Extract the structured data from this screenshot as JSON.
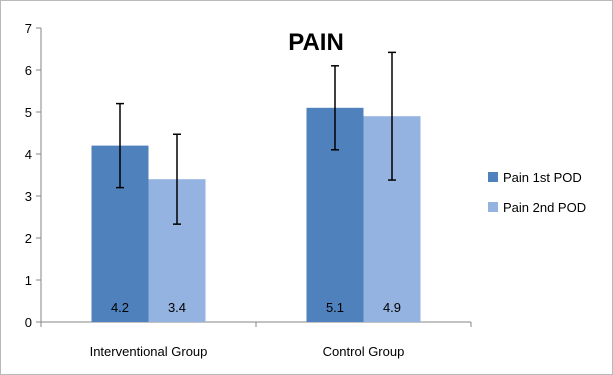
{
  "chart_data": {
    "type": "bar",
    "title": "PAIN",
    "xlabel": "",
    "ylabel": "",
    "ylim": [
      0,
      7
    ],
    "yticks": [
      0,
      1,
      2,
      3,
      4,
      5,
      6,
      7
    ],
    "grid": false,
    "legend_position": "right",
    "categories": [
      "Interventional Group",
      "Control Group"
    ],
    "series": [
      {
        "name": "Pain 1st POD",
        "color": "#4f81bd",
        "values": [
          4.2,
          5.1
        ],
        "error_low": [
          3.2,
          4.1
        ],
        "error_high": [
          5.2,
          6.1
        ],
        "data_labels": [
          "4.2",
          "5.1"
        ]
      },
      {
        "name": "Pain 2nd POD",
        "color": "#95b3e0",
        "values": [
          3.4,
          4.9
        ],
        "error_low": [
          2.33,
          3.38
        ],
        "error_high": [
          4.47,
          6.42
        ],
        "data_labels": [
          "3.4",
          "4.9"
        ]
      }
    ]
  }
}
